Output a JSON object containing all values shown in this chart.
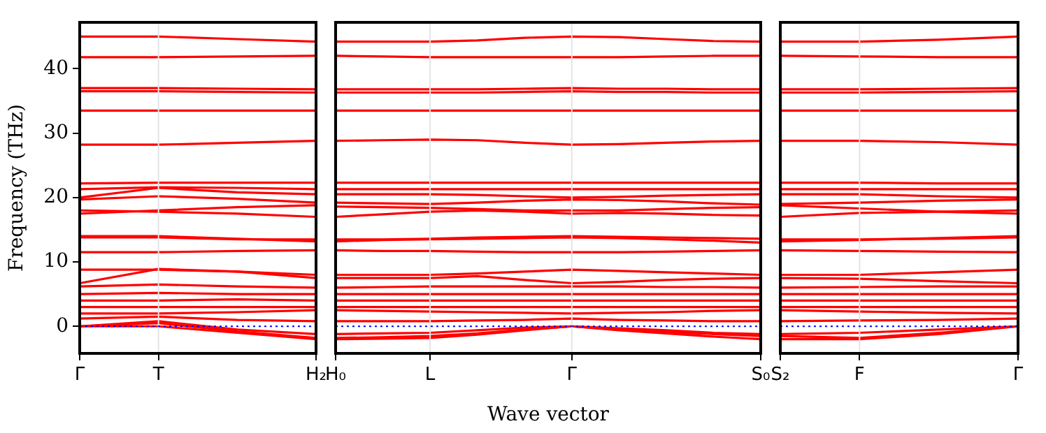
{
  "chart_data": [
    {
      "type": "line",
      "ylabel": "Frequency (THz)",
      "categories": [
        "Γ",
        "T",
        null,
        "H₂"
      ],
      "ylim": [
        -4.2,
        47.2
      ],
      "yticks": [
        0,
        10,
        20,
        30,
        40
      ],
      "marker": "none",
      "line_style": "solid",
      "ref_lines": [
        {
          "axis": "x",
          "value": "T",
          "color": "#e4e4e4",
          "line_style": "solid"
        },
        {
          "axis": "y",
          "value": 0,
          "color": "#0000ff",
          "line_style": "dotted"
        }
      ],
      "series": [
        {
          "color": "#ff0000",
          "values": [
            45,
            45,
            44.6,
            44.2
          ]
        },
        {
          "color": "#ff0000",
          "values": [
            41.8,
            41.8,
            41.9,
            42
          ]
        },
        {
          "color": "#ff0000",
          "values": [
            37,
            37,
            36.9,
            36.8
          ]
        },
        {
          "color": "#ff0000",
          "values": [
            36.5,
            36.5,
            36.4,
            36.3
          ]
        },
        {
          "color": "#ff0000",
          "values": [
            33.5,
            33.5,
            33.5,
            33.5
          ]
        },
        {
          "color": "#ff0000",
          "values": [
            28.2,
            28.2,
            28.5,
            28.8
          ]
        },
        {
          "color": "#ff0000",
          "values": [
            22.2,
            22.3,
            22.3,
            22.3
          ]
        },
        {
          "color": "#ff0000",
          "values": [
            21.3,
            21.6,
            21.5,
            21.3
          ]
        },
        {
          "color": "#ff0000",
          "values": [
            20,
            21.5,
            20.8,
            20.5
          ]
        },
        {
          "color": "#ff0000",
          "values": [
            19.7,
            20.2,
            19.8,
            19.2
          ]
        },
        {
          "color": "#ff0000",
          "values": [
            18,
            17.8,
            17.5,
            17
          ]
        },
        {
          "color": "#ff0000",
          "values": [
            17.5,
            18,
            18.5,
            18.8
          ]
        },
        {
          "color": "#ff0000",
          "values": [
            14,
            14,
            13.6,
            13.2
          ]
        },
        {
          "color": "#ff0000",
          "values": [
            13.8,
            13.8,
            13.5,
            13.5
          ]
        },
        {
          "color": "#ff0000",
          "values": [
            11.5,
            11.5,
            11.7,
            11.8
          ]
        },
        {
          "color": "#ff0000",
          "values": [
            8.8,
            8.8,
            8.5,
            8
          ]
        },
        {
          "color": "#ff0000",
          "values": [
            6.7,
            8.9,
            8.5,
            7.5
          ]
        },
        {
          "color": "#ff0000",
          "values": [
            6.2,
            6.5,
            6.2,
            6
          ]
        },
        {
          "color": "#ff0000",
          "values": [
            5,
            5.2,
            5,
            5
          ]
        },
        {
          "color": "#ff0000",
          "values": [
            4,
            4,
            4.2,
            4
          ]
        },
        {
          "color": "#ff0000",
          "values": [
            3,
            3,
            3,
            3
          ]
        },
        {
          "color": "#ff0000",
          "values": [
            2,
            2,
            2.2,
            2.5
          ]
        },
        {
          "color": "#ff0000",
          "values": [
            1.2,
            1.5,
            1,
            0.8
          ]
        },
        {
          "color": "#ff0000",
          "values": [
            0,
            0.8,
            -0.5,
            -1.2
          ]
        },
        {
          "color": "#ff0000",
          "values": [
            0,
            0.5,
            -0.8,
            -1.8
          ]
        },
        {
          "color": "#ff0000",
          "values": [
            0,
            0,
            -1,
            -2
          ]
        }
      ]
    },
    {
      "type": "line",
      "xlabel": "Wave vector",
      "categories": [
        "H₀",
        null,
        "L",
        null,
        null,
        "Γ",
        null,
        null,
        null,
        "S₀"
      ],
      "ylim": [
        -4.2,
        47.2
      ],
      "yticks": [
        0,
        10,
        20,
        30,
        40
      ],
      "tick_labels": "x",
      "marker": "none",
      "line_style": "solid",
      "ref_lines": [
        {
          "axis": "x",
          "value": "L",
          "color": "#e4e4e4",
          "line_style": "solid"
        },
        {
          "axis": "x",
          "value": "Γ",
          "color": "#e4e4e4",
          "line_style": "solid"
        },
        {
          "axis": "y",
          "value": 0,
          "color": "#0000ff",
          "line_style": "dotted"
        }
      ],
      "series": [
        {
          "color": "#ff0000",
          "values": [
            44.2,
            44.2,
            44.2,
            44.4,
            44.8,
            45,
            44.9,
            44.6,
            44.3,
            44.2
          ]
        },
        {
          "color": "#ff0000",
          "values": [
            42,
            41.9,
            41.8,
            41.8,
            41.8,
            41.8,
            41.8,
            41.9,
            42,
            42
          ]
        },
        {
          "color": "#ff0000",
          "values": [
            36.8,
            36.8,
            36.8,
            36.8,
            36.9,
            37,
            36.9,
            36.9,
            36.8,
            36.8
          ]
        },
        {
          "color": "#ff0000",
          "values": [
            36.3,
            36.3,
            36.3,
            36.3,
            36.4,
            36.5,
            36.4,
            36.4,
            36.3,
            36.3
          ]
        },
        {
          "color": "#ff0000",
          "values": [
            33.5,
            33.5,
            33.5,
            33.5,
            33.5,
            33.5,
            33.5,
            33.5,
            33.5,
            33.5
          ]
        },
        {
          "color": "#ff0000",
          "values": [
            28.8,
            28.9,
            29,
            28.9,
            28.5,
            28.2,
            28.3,
            28.5,
            28.7,
            28.8
          ]
        },
        {
          "color": "#ff0000",
          "values": [
            22.3,
            22.3,
            22.3,
            22.3,
            22.3,
            22.3,
            22.3,
            22.3,
            22.3,
            22.3
          ]
        },
        {
          "color": "#ff0000",
          "values": [
            21.3,
            21.3,
            21.3,
            21.3,
            21.3,
            21.3,
            21.3,
            21.3,
            21.3,
            21.3
          ]
        },
        {
          "color": "#ff0000",
          "values": [
            20.5,
            20.5,
            20.5,
            20.4,
            20.2,
            20,
            20.1,
            20.3,
            20.4,
            20.5
          ]
        },
        {
          "color": "#ff0000",
          "values": [
            19.2,
            19.1,
            19,
            19.2,
            19.5,
            19.7,
            19.6,
            19.4,
            19.1,
            18.9
          ]
        },
        {
          "color": "#ff0000",
          "values": [
            17,
            17.4,
            17.8,
            18,
            17.8,
            17.5,
            17.6,
            17.5,
            17.3,
            17.2
          ]
        },
        {
          "color": "#ff0000",
          "values": [
            18.6,
            18.5,
            18.4,
            18.2,
            18,
            18,
            18,
            18.2,
            18.4,
            18.5
          ]
        },
        {
          "color": "#ff0000",
          "values": [
            13.2,
            13.4,
            13.5,
            13.6,
            13.7,
            13.8,
            13.7,
            13.5,
            13.3,
            13
          ]
        },
        {
          "color": "#ff0000",
          "values": [
            13.5,
            13.5,
            13.6,
            13.8,
            13.9,
            14,
            13.9,
            13.8,
            13.7,
            13.6
          ]
        },
        {
          "color": "#ff0000",
          "values": [
            11.8,
            11.7,
            11.7,
            11.6,
            11.5,
            11.5,
            11.5,
            11.6,
            11.7,
            11.8
          ]
        },
        {
          "color": "#ff0000",
          "values": [
            8,
            8,
            8,
            8.2,
            8.5,
            8.8,
            8.6,
            8.4,
            8.2,
            8
          ]
        },
        {
          "color": "#ff0000",
          "values": [
            7.5,
            7.5,
            7.5,
            7.8,
            7.2,
            6.7,
            6.9,
            7.2,
            7.4,
            7.5
          ]
        },
        {
          "color": "#ff0000",
          "values": [
            6,
            6.1,
            6.2,
            6.2,
            6.2,
            6.2,
            6.2,
            6.1,
            6.1,
            6
          ]
        },
        {
          "color": "#ff0000",
          "values": [
            5,
            5,
            5,
            5,
            5,
            5,
            5,
            5,
            5,
            5
          ]
        },
        {
          "color": "#ff0000",
          "values": [
            4,
            4,
            4,
            4,
            4,
            4,
            4,
            4,
            4,
            4
          ]
        },
        {
          "color": "#ff0000",
          "values": [
            3,
            3,
            3,
            3,
            3,
            3,
            3,
            3,
            3,
            3
          ]
        },
        {
          "color": "#ff0000",
          "values": [
            2.5,
            2.4,
            2.3,
            2.2,
            2.1,
            2,
            2.1,
            2.2,
            2.4,
            2.5
          ]
        },
        {
          "color": "#ff0000",
          "values": [
            0.8,
            0.8,
            0.8,
            0.9,
            1,
            1.2,
            1,
            0.9,
            0.8,
            0.8
          ]
        },
        {
          "color": "#ff0000",
          "values": [
            -1.2,
            -1.1,
            -1,
            -0.6,
            -0.2,
            0,
            -0.3,
            -0.6,
            -1,
            -1.2
          ]
        },
        {
          "color": "#ff0000",
          "values": [
            -1.8,
            -1.7,
            -1.5,
            -1.1,
            -0.5,
            0,
            -0.5,
            -0.9,
            -1.2,
            -1.5
          ]
        },
        {
          "color": "#ff0000",
          "values": [
            -2,
            -1.9,
            -1.8,
            -1.3,
            -0.6,
            0,
            -0.6,
            -1.1,
            -1.6,
            -2
          ]
        }
      ]
    },
    {
      "type": "line",
      "categories": [
        "S₂",
        "F",
        null,
        "Γ"
      ],
      "ylim": [
        -4.2,
        47.2
      ],
      "yticks": [
        0,
        10,
        20,
        30,
        40
      ],
      "tick_labels": "x",
      "marker": "none",
      "line_style": "solid",
      "ref_lines": [
        {
          "axis": "x",
          "value": "F",
          "color": "#e4e4e4",
          "line_style": "solid"
        },
        {
          "axis": "y",
          "value": 0,
          "color": "#0000ff",
          "line_style": "dotted"
        }
      ],
      "series": [
        {
          "color": "#ff0000",
          "values": [
            44.2,
            44.2,
            44.5,
            45
          ]
        },
        {
          "color": "#ff0000",
          "values": [
            42,
            41.9,
            41.8,
            41.8
          ]
        },
        {
          "color": "#ff0000",
          "values": [
            36.8,
            36.8,
            36.9,
            37
          ]
        },
        {
          "color": "#ff0000",
          "values": [
            36.3,
            36.3,
            36.4,
            36.5
          ]
        },
        {
          "color": "#ff0000",
          "values": [
            33.5,
            33.5,
            33.5,
            33.5
          ]
        },
        {
          "color": "#ff0000",
          "values": [
            28.8,
            28.8,
            28.6,
            28.2
          ]
        },
        {
          "color": "#ff0000",
          "values": [
            22.3,
            22.3,
            22.2,
            22.2
          ]
        },
        {
          "color": "#ff0000",
          "values": [
            21.3,
            21.3,
            21.3,
            21.3
          ]
        },
        {
          "color": "#ff0000",
          "values": [
            20.5,
            20.5,
            20.2,
            20
          ]
        },
        {
          "color": "#ff0000",
          "values": [
            19,
            19.2,
            19.5,
            19.7
          ]
        },
        {
          "color": "#ff0000",
          "values": [
            17,
            17.6,
            17.8,
            18
          ]
        },
        {
          "color": "#ff0000",
          "values": [
            18.8,
            18.3,
            17.8,
            17.5
          ]
        },
        {
          "color": "#ff0000",
          "values": [
            13.2,
            13.4,
            13.7,
            14
          ]
        },
        {
          "color": "#ff0000",
          "values": [
            13.5,
            13.5,
            13.6,
            13.8
          ]
        },
        {
          "color": "#ff0000",
          "values": [
            11.8,
            11.7,
            11.6,
            11.5
          ]
        },
        {
          "color": "#ff0000",
          "values": [
            8,
            8,
            8.4,
            8.8
          ]
        },
        {
          "color": "#ff0000",
          "values": [
            7.5,
            7.4,
            7,
            6.7
          ]
        },
        {
          "color": "#ff0000",
          "values": [
            6,
            6.1,
            6.2,
            6.2
          ]
        },
        {
          "color": "#ff0000",
          "values": [
            5,
            5,
            5,
            5
          ]
        },
        {
          "color": "#ff0000",
          "values": [
            4,
            4,
            4,
            4
          ]
        },
        {
          "color": "#ff0000",
          "values": [
            3,
            3,
            3,
            3
          ]
        },
        {
          "color": "#ff0000",
          "values": [
            2.5,
            2.3,
            2.1,
            2
          ]
        },
        {
          "color": "#ff0000",
          "values": [
            0.8,
            0.9,
            1,
            1.2
          ]
        },
        {
          "color": "#ff0000",
          "values": [
            -1.2,
            -1,
            -0.5,
            0
          ]
        },
        {
          "color": "#ff0000",
          "values": [
            -1.5,
            -1.8,
            -1,
            0
          ]
        },
        {
          "color": "#ff0000",
          "values": [
            -2,
            -2,
            -1.2,
            0
          ]
        }
      ]
    }
  ]
}
